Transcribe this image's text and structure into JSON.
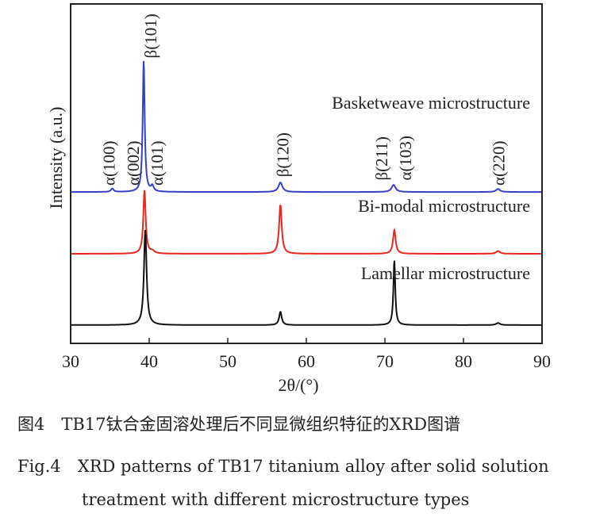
{
  "chart_data": {
    "type": "line",
    "xlabel": "2θ/(°)",
    "ylabel": "Intensity (a.u.)",
    "xlim": [
      30,
      90
    ],
    "ylim": [
      0,
      100
    ],
    "xticks": [
      30,
      40,
      50,
      60,
      70,
      80,
      90
    ],
    "grid": false,
    "series": [
      {
        "name": "Basketweave microstructure",
        "color": "#3a3fc4",
        "baseline": 44.6,
        "peaks": [
          {
            "x": 35.3,
            "h": 1.0,
            "w": 0.2
          },
          {
            "x": 39.3,
            "h": 38.6,
            "w": 0.15
          },
          {
            "x": 40.4,
            "h": 1.6,
            "w": 0.2
          },
          {
            "x": 56.7,
            "h": 2.8,
            "w": 0.3
          },
          {
            "x": 71.1,
            "h": 2.1,
            "w": 0.3
          },
          {
            "x": 84.4,
            "h": 0.9,
            "w": 0.3
          }
        ]
      },
      {
        "name": "Bi-modal microstructure",
        "color": "#e8281e",
        "baseline": 26.4,
        "peaks": [
          {
            "x": 39.4,
            "h": 18.7,
            "w": 0.18
          },
          {
            "x": 40.4,
            "h": 0.7,
            "w": 0.3
          },
          {
            "x": 56.7,
            "h": 14.5,
            "w": 0.2
          },
          {
            "x": 71.2,
            "h": 7.0,
            "w": 0.2
          },
          {
            "x": 84.4,
            "h": 0.8,
            "w": 0.3
          }
        ]
      },
      {
        "name": "Lamellar microstructure",
        "color": "#111111",
        "baseline": 5.4,
        "peaks": [
          {
            "x": 39.5,
            "h": 28.0,
            "w": 0.2
          },
          {
            "x": 56.7,
            "h": 3.9,
            "w": 0.2
          },
          {
            "x": 71.2,
            "h": 19.1,
            "w": 0.14
          },
          {
            "x": 84.4,
            "h": 0.6,
            "w": 0.3
          }
        ]
      }
    ],
    "annotations": [
      {
        "text": "α(100)",
        "x": 35.3,
        "y": 46.5
      },
      {
        "text": "α(002)",
        "x": 38.0,
        "y": 46.5
      },
      {
        "text": "β(101)",
        "x": 40.2,
        "y": 84
      },
      {
        "text": "α(101)",
        "x": 41.0,
        "y": 46.5
      },
      {
        "text": "β(120)",
        "x": 57.0,
        "y": 49
      },
      {
        "text": "β(211)",
        "x": 70.6,
        "y": 48
      },
      {
        "text": "α(103)",
        "x": 72.2,
        "y": 48
      },
      {
        "text": "α(220)",
        "x": 84.5,
        "y": 46.5
      }
    ]
  },
  "caption": {
    "cn": "图4　TB17钛合金固溶处理后不同显微组织特征的XRD图谱",
    "en_line1": "Fig.4　XRD patterns of TB17 titanium alloy after solid solution",
    "en_line2": "treatment with different microstructure types"
  }
}
